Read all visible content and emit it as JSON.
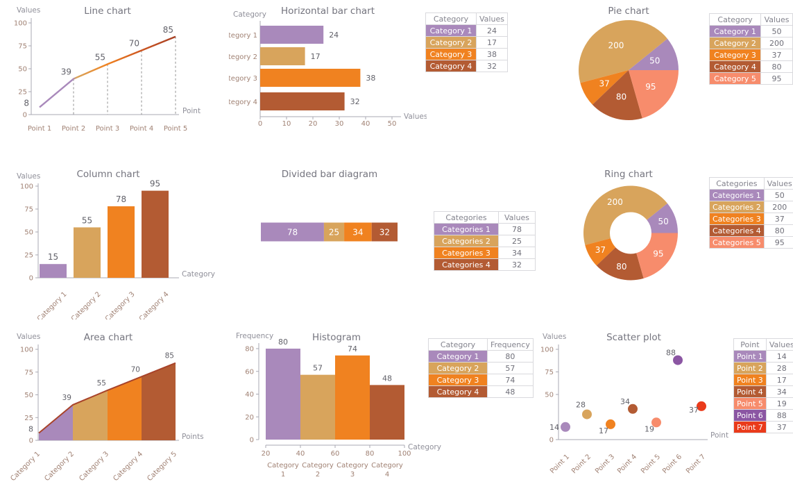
{
  "palette": {
    "purple": "#a989bb",
    "gold": "#d8a45c",
    "orange": "#f08220",
    "brick": "#b35b33",
    "salmon": "#f78c6c",
    "violet": "#8b56a3",
    "red": "#ea3b1b",
    "line_end_1": "#cc5520",
    "line_end_2": "#a63f24",
    "area_line": "#a8432a",
    "axis": "#a9a9b3",
    "tick_text": "#a08173",
    "axis_name_text": "#8f8f99",
    "data_label_text": "#616169",
    "title_text": "#74747e"
  },
  "chart_data": [
    {
      "id": "line-chart",
      "type": "line",
      "title": "Line chart",
      "ylabel": "Values",
      "xlabel": "Point",
      "categories": [
        "Point 1",
        "Point 2",
        "Point 3",
        "Point 4",
        "Point 5"
      ],
      "values": [
        8,
        39,
        55,
        70,
        85
      ],
      "ylim": [
        0,
        100
      ],
      "yticks": [
        0,
        25,
        50,
        75,
        100
      ],
      "line_gradient": [
        "purple",
        "gold",
        "orange",
        "line_end_1",
        "line_end_2"
      ]
    },
    {
      "id": "horizontal-bar-chart",
      "type": "bar-horizontal",
      "title": "Horizontal bar chart",
      "xlabel": "Values",
      "ylabel": "Category",
      "categories": [
        "Category 1",
        "Category 2",
        "Category 3",
        "Category 4"
      ],
      "values": [
        24,
        17,
        38,
        32
      ],
      "xlim": [
        0,
        50
      ],
      "xticks": [
        0,
        10,
        20,
        30,
        40,
        50
      ],
      "colors": [
        "purple",
        "gold",
        "orange",
        "brick"
      ],
      "legend": {
        "headers": [
          "Category",
          "Values"
        ]
      }
    },
    {
      "id": "pie-chart",
      "type": "pie",
      "title": "Pie chart",
      "categories": [
        "Category 1",
        "Category 2",
        "Category 3",
        "Category 4",
        "Category 5"
      ],
      "values": [
        50,
        200,
        37,
        80,
        95
      ],
      "colors": [
        "purple",
        "gold",
        "orange",
        "brick",
        "salmon"
      ],
      "legend": {
        "headers": [
          "Category",
          "Values"
        ]
      }
    },
    {
      "id": "column-chart",
      "type": "column",
      "title": "Column chart",
      "xlabel": "Category",
      "ylabel": "Values",
      "categories": [
        "Category 1",
        "Category 2",
        "Category 3",
        "Category 4"
      ],
      "values": [
        15,
        55,
        78,
        95
      ],
      "ylim": [
        0,
        100
      ],
      "yticks": [
        0,
        25,
        50,
        75,
        100
      ],
      "colors": [
        "purple",
        "gold",
        "orange",
        "brick"
      ]
    },
    {
      "id": "divided-bar-diagram",
      "type": "divided-bar",
      "title": "Divided bar diagram",
      "categories": [
        "Categories 1",
        "Categories 2",
        "Categories 3",
        "Categories 4"
      ],
      "values": [
        78,
        25,
        34,
        32
      ],
      "colors": [
        "purple",
        "gold",
        "orange",
        "brick"
      ],
      "legend": {
        "headers": [
          "Categories",
          "Values"
        ]
      }
    },
    {
      "id": "ring-chart",
      "type": "ring",
      "title": "Ring chart",
      "categories": [
        "Categories 1",
        "Categories 2",
        "Categories 3",
        "Categories 4",
        "Categories 5"
      ],
      "values": [
        50,
        200,
        37,
        80,
        95
      ],
      "colors": [
        "purple",
        "gold",
        "orange",
        "brick",
        "salmon"
      ],
      "legend": {
        "headers": [
          "Categories",
          "Values"
        ]
      }
    },
    {
      "id": "area-chart",
      "type": "area",
      "title": "Area chart",
      "ylabel": "Values",
      "xlabel": "Points",
      "categories": [
        "Category 1",
        "Category 2",
        "Category 3",
        "Category 4",
        "Category 5"
      ],
      "values": [
        8,
        39,
        55,
        70,
        85
      ],
      "ylim": [
        0,
        100
      ],
      "yticks": [
        0,
        25,
        50,
        75,
        100
      ],
      "colors": [
        "purple",
        "gold",
        "orange",
        "brick"
      ]
    },
    {
      "id": "histogram",
      "type": "histogram",
      "title": "Histogram",
      "ylabel": "Frequency",
      "xlabel": "Category",
      "categories": [
        "Category 1",
        "Category 2",
        "Category 3",
        "Category 4"
      ],
      "bin_edges": [
        20,
        40,
        60,
        80,
        100
      ],
      "values": [
        80,
        57,
        74,
        48
      ],
      "ylim": [
        0,
        80
      ],
      "yticks": [
        0,
        20,
        40,
        60,
        80
      ],
      "colors": [
        "purple",
        "gold",
        "orange",
        "brick"
      ],
      "legend": {
        "headers": [
          "Category",
          "Frequency"
        ]
      }
    },
    {
      "id": "scatter-plot",
      "type": "scatter",
      "title": "Scatter plot",
      "ylabel": "Values",
      "xlabel": "Point",
      "categories": [
        "Point 1",
        "Point 2",
        "Point 3",
        "Point 4",
        "Point 5",
        "Point 6",
        "Point 7"
      ],
      "values": [
        14,
        28,
        17,
        34,
        19,
        88,
        37
      ],
      "ylim": [
        0,
        100
      ],
      "yticks": [
        0,
        50,
        75,
        100
      ],
      "colors": [
        "purple",
        "gold",
        "orange",
        "brick",
        "salmon",
        "violet",
        "red"
      ],
      "legend": {
        "headers": [
          "Point",
          "Values"
        ]
      }
    }
  ]
}
